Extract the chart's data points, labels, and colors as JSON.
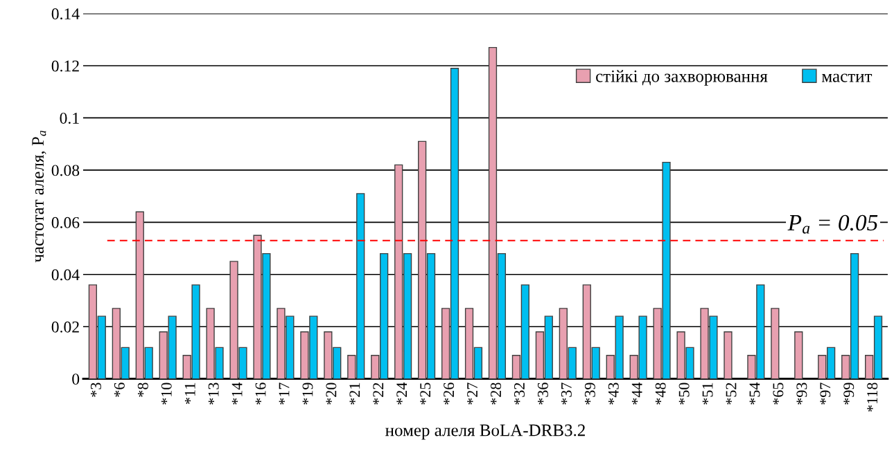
{
  "chart_data": {
    "type": "bar",
    "xlabel": "номер алеля BoLA-DRB3.2",
    "ylabel": "частотат алеля, P$_{a}$",
    "categories": [
      "*3",
      "*6",
      "*8",
      "*10",
      "*11",
      "*13",
      "*14",
      "*16",
      "*17",
      "*19",
      "*20",
      "*21",
      "*22",
      "*24",
      "*25",
      "*26",
      "*27",
      "*28",
      "*32",
      "*36",
      "*37",
      "*39",
      "*43",
      "*44",
      "*48",
      "*50",
      "*51",
      "*52",
      "*54",
      "*65",
      "*93",
      "*97",
      "*99",
      "*118"
    ],
    "series": [
      {
        "name": "стійкі до захворювання",
        "color": "#e8a0b0",
        "values": [
          0.036,
          0.027,
          0.064,
          0.018,
          0.009,
          0.027,
          0.045,
          0.055,
          0.027,
          0.018,
          0.018,
          0.009,
          0.009,
          0.082,
          0.091,
          0.027,
          0.027,
          0.127,
          0.009,
          0.018,
          0.027,
          0.036,
          0.009,
          0.009,
          0.027,
          0.018,
          0.027,
          0.018,
          0.009,
          0.027,
          0.018,
          0.009,
          0.009,
          0.009
        ]
      },
      {
        "name": "мастит",
        "color": "#00bff0",
        "values": [
          0.024,
          0.012,
          0.012,
          0.024,
          0.036,
          0.012,
          0.012,
          0.048,
          0.024,
          0.024,
          0.012,
          0.071,
          0.048,
          0.048,
          0.048,
          0.119,
          0.012,
          0.048,
          0.036,
          0.024,
          0.012,
          0.012,
          0.024,
          0.024,
          0.083,
          0.012,
          0.024,
          0,
          0.036,
          0,
          0,
          0.012,
          0.048,
          0.024
        ]
      }
    ],
    "ylim": [
      0,
      0.14
    ],
    "yticks": [
      0,
      0.02,
      0.04,
      0.06,
      0.08,
      0.1,
      0.12,
      0.14
    ],
    "grid": "y",
    "legend": "top right",
    "ref_lines": [
      {
        "axis": "y",
        "value": 0.053,
        "label": "P$_{a}$ = 0.05",
        "color": "#ff0000",
        "line_style": "dashed"
      }
    ]
  }
}
